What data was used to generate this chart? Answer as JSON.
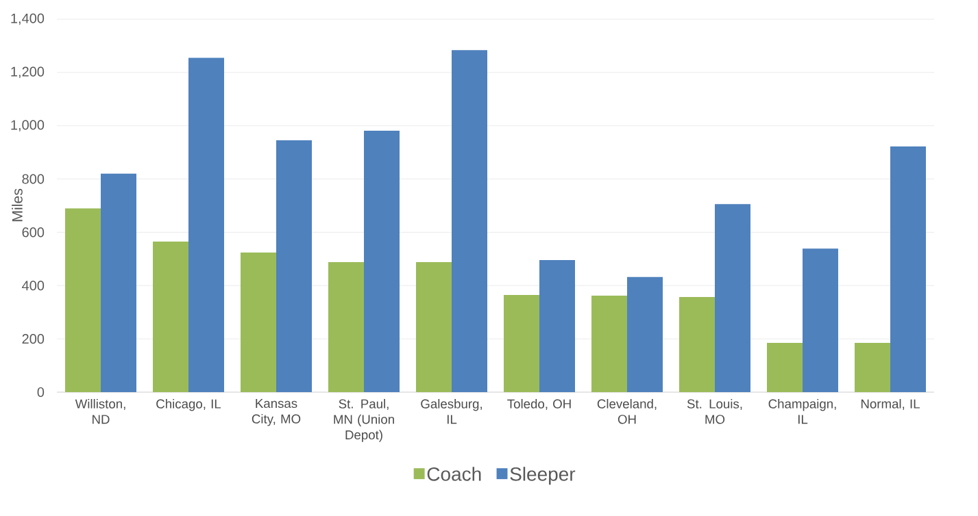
{
  "chart_data": {
    "type": "bar",
    "ylabel": "Miles",
    "categories": [
      "Williston, ND",
      "Chicago, IL",
      "Kansas City, MO",
      "St. Paul, MN (Union Depot)",
      "Galesburg, IL",
      "Toledo, OH",
      "Cleveland, OH",
      "St. Louis, MO",
      "Champaign, IL",
      "Normal, IL"
    ],
    "series": [
      {
        "name": "Coach",
        "color": "#9bbb59",
        "values": [
          690,
          565,
          524,
          488,
          488,
          365,
          362,
          357,
          185,
          185
        ]
      },
      {
        "name": "Sleeper",
        "color": "#4f81bd",
        "values": [
          820,
          1255,
          945,
          981,
          1284,
          496,
          432,
          706,
          539,
          922
        ]
      }
    ],
    "ylim": [
      0,
      1400
    ],
    "yticks": [
      {
        "value": 0,
        "label": "0"
      },
      {
        "value": 200,
        "label": "200"
      },
      {
        "value": 400,
        "label": "400"
      },
      {
        "value": 600,
        "label": "600"
      },
      {
        "value": 800,
        "label": "800"
      },
      {
        "value": 1000,
        "label": "1,000"
      },
      {
        "value": 1200,
        "label": "1,200"
      },
      {
        "value": 1400,
        "label": "1,400"
      }
    ],
    "grid": "y",
    "legend": "bottom"
  }
}
